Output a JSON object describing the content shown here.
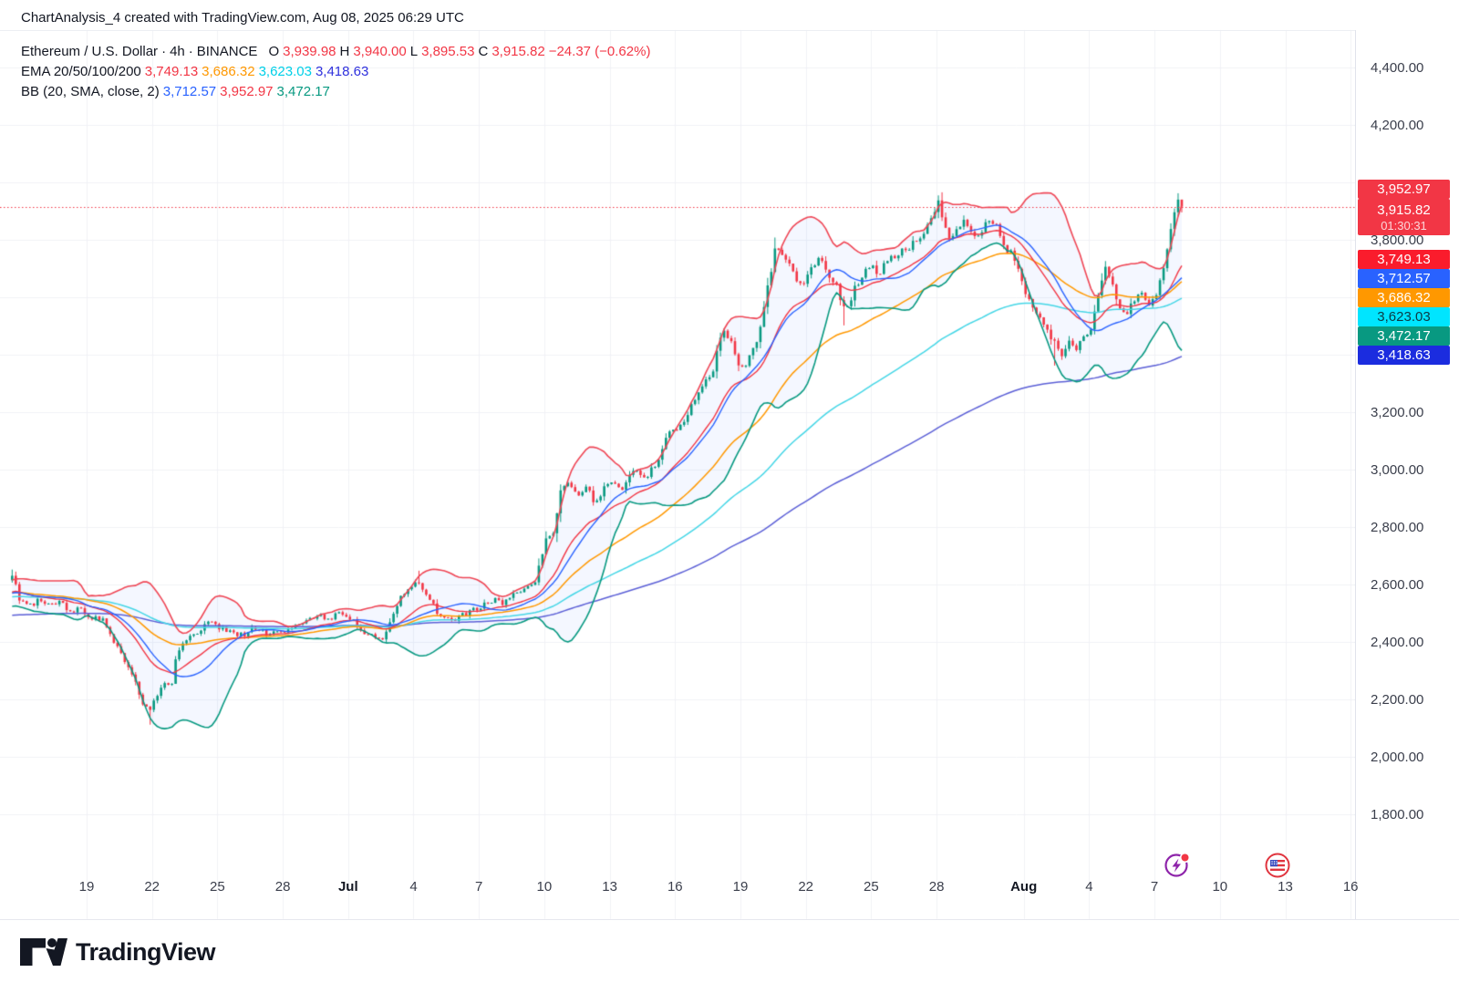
{
  "header": {
    "title": "ChartAnalysis_4 created with TradingView.com, Aug 08, 2025 06:29 UTC"
  },
  "legend": {
    "symbol": "Ethereum / U.S. Dollar",
    "sep": "·",
    "interval": "4h",
    "exchange": "BINANCE",
    "ohlc": {
      "o_label": "O",
      "o": "3,939.98",
      "h_label": "H",
      "h": "3,940.00",
      "l_label": "L",
      "l": "3,895.53",
      "c_label": "C",
      "c": "3,915.82",
      "change": "−24.37 (−0.62%)"
    },
    "ema": {
      "label": "EMA 20/50/100/200",
      "values": [
        {
          "text": "3,749.13",
          "color": "#f23645"
        },
        {
          "text": "3,686.32",
          "color": "#ff9800"
        },
        {
          "text": "3,623.03",
          "color": "#00d0e8"
        },
        {
          "text": "3,418.63",
          "color": "#2f31dd"
        }
      ]
    },
    "bb": {
      "label": "BB (20, SMA, close, 2)",
      "values": [
        {
          "text": "3,712.57",
          "color": "#2962ff"
        },
        {
          "text": "3,952.97",
          "color": "#f23645"
        },
        {
          "text": "3,472.17",
          "color": "#089981"
        }
      ]
    }
  },
  "price_scale": {
    "labels": [
      {
        "text": "4,400.00",
        "value": 4400
      },
      {
        "text": "4,200.00",
        "value": 4200
      },
      {
        "text": "3,800.00",
        "value": 3800
      },
      {
        "text": "3,200.00",
        "value": 3200
      },
      {
        "text": "3,000.00",
        "value": 3000
      },
      {
        "text": "2,800.00",
        "value": 2800
      },
      {
        "text": "2,600.00",
        "value": 2600
      },
      {
        "text": "2,400.00",
        "value": 2400
      },
      {
        "text": "2,200.00",
        "value": 2200
      },
      {
        "text": "2,000.00",
        "value": 2000
      },
      {
        "text": "1,800.00",
        "value": 1800
      }
    ],
    "badges": [
      {
        "kind": "bb-upper",
        "text": "3,952.97",
        "bg": "#f23645",
        "fg": "#ffffff"
      },
      {
        "kind": "last-price",
        "text": "3,915.82",
        "countdown": "01:30:31",
        "bg": "#f23645",
        "fg": "#ffffff"
      },
      {
        "kind": "ema20",
        "text": "3,749.13",
        "bg": "#fa1c2c",
        "fg": "#ffffff"
      },
      {
        "kind": "bb-basis",
        "text": "3,712.57",
        "bg": "#2962ff",
        "fg": "#ffffff"
      },
      {
        "kind": "ema50",
        "text": "3,686.32",
        "bg": "#ff9800",
        "fg": "#ffffff"
      },
      {
        "kind": "ema100",
        "text": "3,623.03",
        "bg": "#00e5ff",
        "fg": "#0d3a43"
      },
      {
        "kind": "bb-lower",
        "text": "3,472.17",
        "bg": "#089981",
        "fg": "#ffffff"
      },
      {
        "kind": "ema200",
        "text": "3,418.63",
        "bg": "#1b2cdf",
        "fg": "#ffffff"
      }
    ]
  },
  "chart_data": {
    "type": "candlestick",
    "title": "Ethereum / U.S. Dollar · 4h · BINANCE",
    "interval_hours": 4,
    "ylim": [
      1800,
      4400
    ],
    "y_step": 200,
    "grid": true,
    "price_line": {
      "value": 3915.82,
      "label": "3,915.82",
      "countdown": "01:30:31",
      "color": "#f23645"
    },
    "last_candle": {
      "open": 3939.98,
      "high": 3940.0,
      "low": 3895.53,
      "close": 3915.82
    },
    "indicators": {
      "ema_periods": [
        20,
        50,
        100,
        200
      ],
      "ema_last_values": [
        3749.13,
        3686.32,
        3623.03,
        3418.63
      ],
      "bb": {
        "period": 20,
        "mult": 2,
        "basis": 3712.57,
        "upper": 3952.97,
        "lower": 3472.17
      }
    },
    "colors": {
      "up": "#089981",
      "down": "#f23645",
      "ema20": "#f23645",
      "ema50": "#ff9800",
      "ema100": "#45d6e6",
      "ema200": "#5b5fd6",
      "bb_basis": "#2962ff",
      "bb_upper": "#ef4655",
      "bb_lower": "#089981",
      "bb_fill": "rgba(41,98,255,0.05)",
      "grid": "#f0f2f6"
    },
    "x_axis": {
      "origin_date": "Jun 15",
      "days_per_tick": 3,
      "ticks": [
        {
          "label": "19",
          "day": 4,
          "bold": false
        },
        {
          "label": "22",
          "day": 7,
          "bold": false
        },
        {
          "label": "25",
          "day": 10,
          "bold": false
        },
        {
          "label": "28",
          "day": 13,
          "bold": false
        },
        {
          "label": "Jul",
          "day": 16,
          "bold": true
        },
        {
          "label": "4",
          "day": 19,
          "bold": false
        },
        {
          "label": "7",
          "day": 22,
          "bold": false
        },
        {
          "label": "10",
          "day": 25,
          "bold": false
        },
        {
          "label": "13",
          "day": 28,
          "bold": false
        },
        {
          "label": "16",
          "day": 31,
          "bold": false
        },
        {
          "label": "19",
          "day": 34,
          "bold": false
        },
        {
          "label": "22",
          "day": 37,
          "bold": false
        },
        {
          "label": "25",
          "day": 40,
          "bold": false
        },
        {
          "label": "28",
          "day": 43,
          "bold": false
        },
        {
          "label": "Aug",
          "day": 47,
          "bold": true
        },
        {
          "label": "4",
          "day": 50,
          "bold": false
        },
        {
          "label": "7",
          "day": 53,
          "bold": false
        },
        {
          "label": "10",
          "day": 56,
          "bold": false
        },
        {
          "label": "13",
          "day": 59,
          "bold": false
        },
        {
          "label": "16",
          "day": 62,
          "bold": false
        }
      ]
    },
    "warmup_path": [
      [
        -10,
        2615
      ],
      [
        -9,
        2550
      ],
      [
        -8,
        2648
      ],
      [
        -7,
        2565
      ],
      [
        -6,
        2628
      ],
      [
        -5,
        2548
      ],
      [
        -4,
        2602
      ],
      [
        -3,
        2532
      ],
      [
        -2,
        2588
      ],
      [
        -1,
        2542
      ]
    ],
    "close_path": [
      [
        0,
        2560
      ],
      [
        0.5,
        2628
      ],
      [
        0.9,
        2538
      ],
      [
        1.3,
        2522
      ],
      [
        1.7,
        2552
      ],
      [
        2.2,
        2528
      ],
      [
        2.7,
        2545
      ],
      [
        3.2,
        2502
      ],
      [
        3.6,
        2528
      ],
      [
        4,
        2488
      ],
      [
        4.4,
        2478
      ],
      [
        4.8,
        2470
      ],
      [
        5.1,
        2398
      ],
      [
        5.5,
        2362
      ],
      [
        5.9,
        2292
      ],
      [
        6.2,
        2248
      ],
      [
        6.5,
        2188
      ],
      [
        6.8,
        2158
      ],
      [
        7.1,
        2212
      ],
      [
        7.5,
        2262
      ],
      [
        7.8,
        2248
      ],
      [
        8,
        2338
      ],
      [
        8.3,
        2398
      ],
      [
        8.7,
        2418
      ],
      [
        9.1,
        2442
      ],
      [
        9.6,
        2468
      ],
      [
        10.1,
        2448
      ],
      [
        10.6,
        2428
      ],
      [
        11.1,
        2422
      ],
      [
        11.6,
        2448
      ],
      [
        12.1,
        2430
      ],
      [
        12.6,
        2446
      ],
      [
        13.1,
        2438
      ],
      [
        13.6,
        2452
      ],
      [
        14.1,
        2470
      ],
      [
        14.6,
        2494
      ],
      [
        15.1,
        2480
      ],
      [
        15.6,
        2506
      ],
      [
        16,
        2488
      ],
      [
        16.5,
        2436
      ],
      [
        17,
        2424
      ],
      [
        17.4,
        2402
      ],
      [
        17.8,
        2452
      ],
      [
        18.2,
        2542
      ],
      [
        18.7,
        2596
      ],
      [
        19.2,
        2612
      ],
      [
        19.6,
        2552
      ],
      [
        20,
        2508
      ],
      [
        20.5,
        2476
      ],
      [
        21,
        2486
      ],
      [
        21.5,
        2504
      ],
      [
        22,
        2518
      ],
      [
        22.5,
        2545
      ],
      [
        23,
        2536
      ],
      [
        23.5,
        2562
      ],
      [
        24,
        2582
      ],
      [
        24.5,
        2618
      ],
      [
        25,
        2758
      ],
      [
        25.4,
        2788
      ],
      [
        25.7,
        2942
      ],
      [
        26.1,
        2952
      ],
      [
        26.5,
        2918
      ],
      [
        26.9,
        2942
      ],
      [
        27.2,
        2885
      ],
      [
        27.5,
        2918
      ],
      [
        27.9,
        2952
      ],
      [
        28.4,
        2928
      ],
      [
        28.8,
        2968
      ],
      [
        29.1,
        3012
      ],
      [
        29.5,
        2972
      ],
      [
        29.8,
        2992
      ],
      [
        30.2,
        3048
      ],
      [
        30.6,
        3118
      ],
      [
        31,
        3142
      ],
      [
        31.4,
        3172
      ],
      [
        31.8,
        3248
      ],
      [
        32.2,
        3295
      ],
      [
        32.6,
        3328
      ],
      [
        33,
        3452
      ],
      [
        33.2,
        3482
      ],
      [
        33.5,
        3455
      ],
      [
        33.9,
        3348
      ],
      [
        34.2,
        3368
      ],
      [
        34.6,
        3432
      ],
      [
        35,
        3568
      ],
      [
        35.3,
        3688
      ],
      [
        35.5,
        3775
      ],
      [
        35.8,
        3742
      ],
      [
        36.1,
        3715
      ],
      [
        36.4,
        3672
      ],
      [
        36.8,
        3648
      ],
      [
        37.2,
        3695
      ],
      [
        37.6,
        3748
      ],
      [
        38,
        3672
      ],
      [
        38.4,
        3635
      ],
      [
        38.6,
        3548
      ],
      [
        38.9,
        3588
      ],
      [
        39.3,
        3645
      ],
      [
        39.8,
        3715
      ],
      [
        40.3,
        3688
      ],
      [
        40.8,
        3728
      ],
      [
        41.3,
        3762
      ],
      [
        41.8,
        3788
      ],
      [
        42.2,
        3822
      ],
      [
        42.6,
        3858
      ],
      [
        43,
        3928
      ],
      [
        43.3,
        3858
      ],
      [
        43.6,
        3792
      ],
      [
        43.9,
        3835
      ],
      [
        44.2,
        3868
      ],
      [
        44.5,
        3842
      ],
      [
        44.8,
        3812
      ],
      [
        45.1,
        3855
      ],
      [
        45.4,
        3875
      ],
      [
        45.8,
        3828
      ],
      [
        46.2,
        3762
      ],
      [
        46.6,
        3718
      ],
      [
        47,
        3622
      ],
      [
        47.4,
        3542
      ],
      [
        47.8,
        3512
      ],
      [
        48.1,
        3478
      ],
      [
        48.4,
        3432
      ],
      [
        48.7,
        3398
      ],
      [
        49,
        3442
      ],
      [
        49.3,
        3408
      ],
      [
        49.7,
        3462
      ],
      [
        50,
        3488
      ],
      [
        50.3,
        3592
      ],
      [
        50.7,
        3705
      ],
      [
        51,
        3652
      ],
      [
        51.3,
        3572
      ],
      [
        51.6,
        3548
      ],
      [
        52,
        3588
      ],
      [
        52.4,
        3612
      ],
      [
        52.7,
        3578
      ],
      [
        53,
        3615
      ],
      [
        53.3,
        3698
      ],
      [
        53.6,
        3812
      ],
      [
        53.9,
        3902
      ],
      [
        54,
        3939.98
      ],
      [
        54.17,
        3915.82
      ]
    ],
    "wick_extremes": [
      [
        0.5,
        2652
      ],
      [
        6.8,
        2112
      ],
      [
        19.2,
        2648
      ],
      [
        35.5,
        3808
      ],
      [
        38.6,
        3502
      ],
      [
        43,
        3940
      ],
      [
        48.4,
        3362
      ],
      [
        50.7,
        3726
      ],
      [
        54,
        3941
      ]
    ]
  },
  "footer": {
    "logo_text": "TradingView"
  },
  "marker_icons": [
    {
      "name": "lightning-event-icon"
    },
    {
      "name": "us-flag-event-icon"
    }
  ]
}
